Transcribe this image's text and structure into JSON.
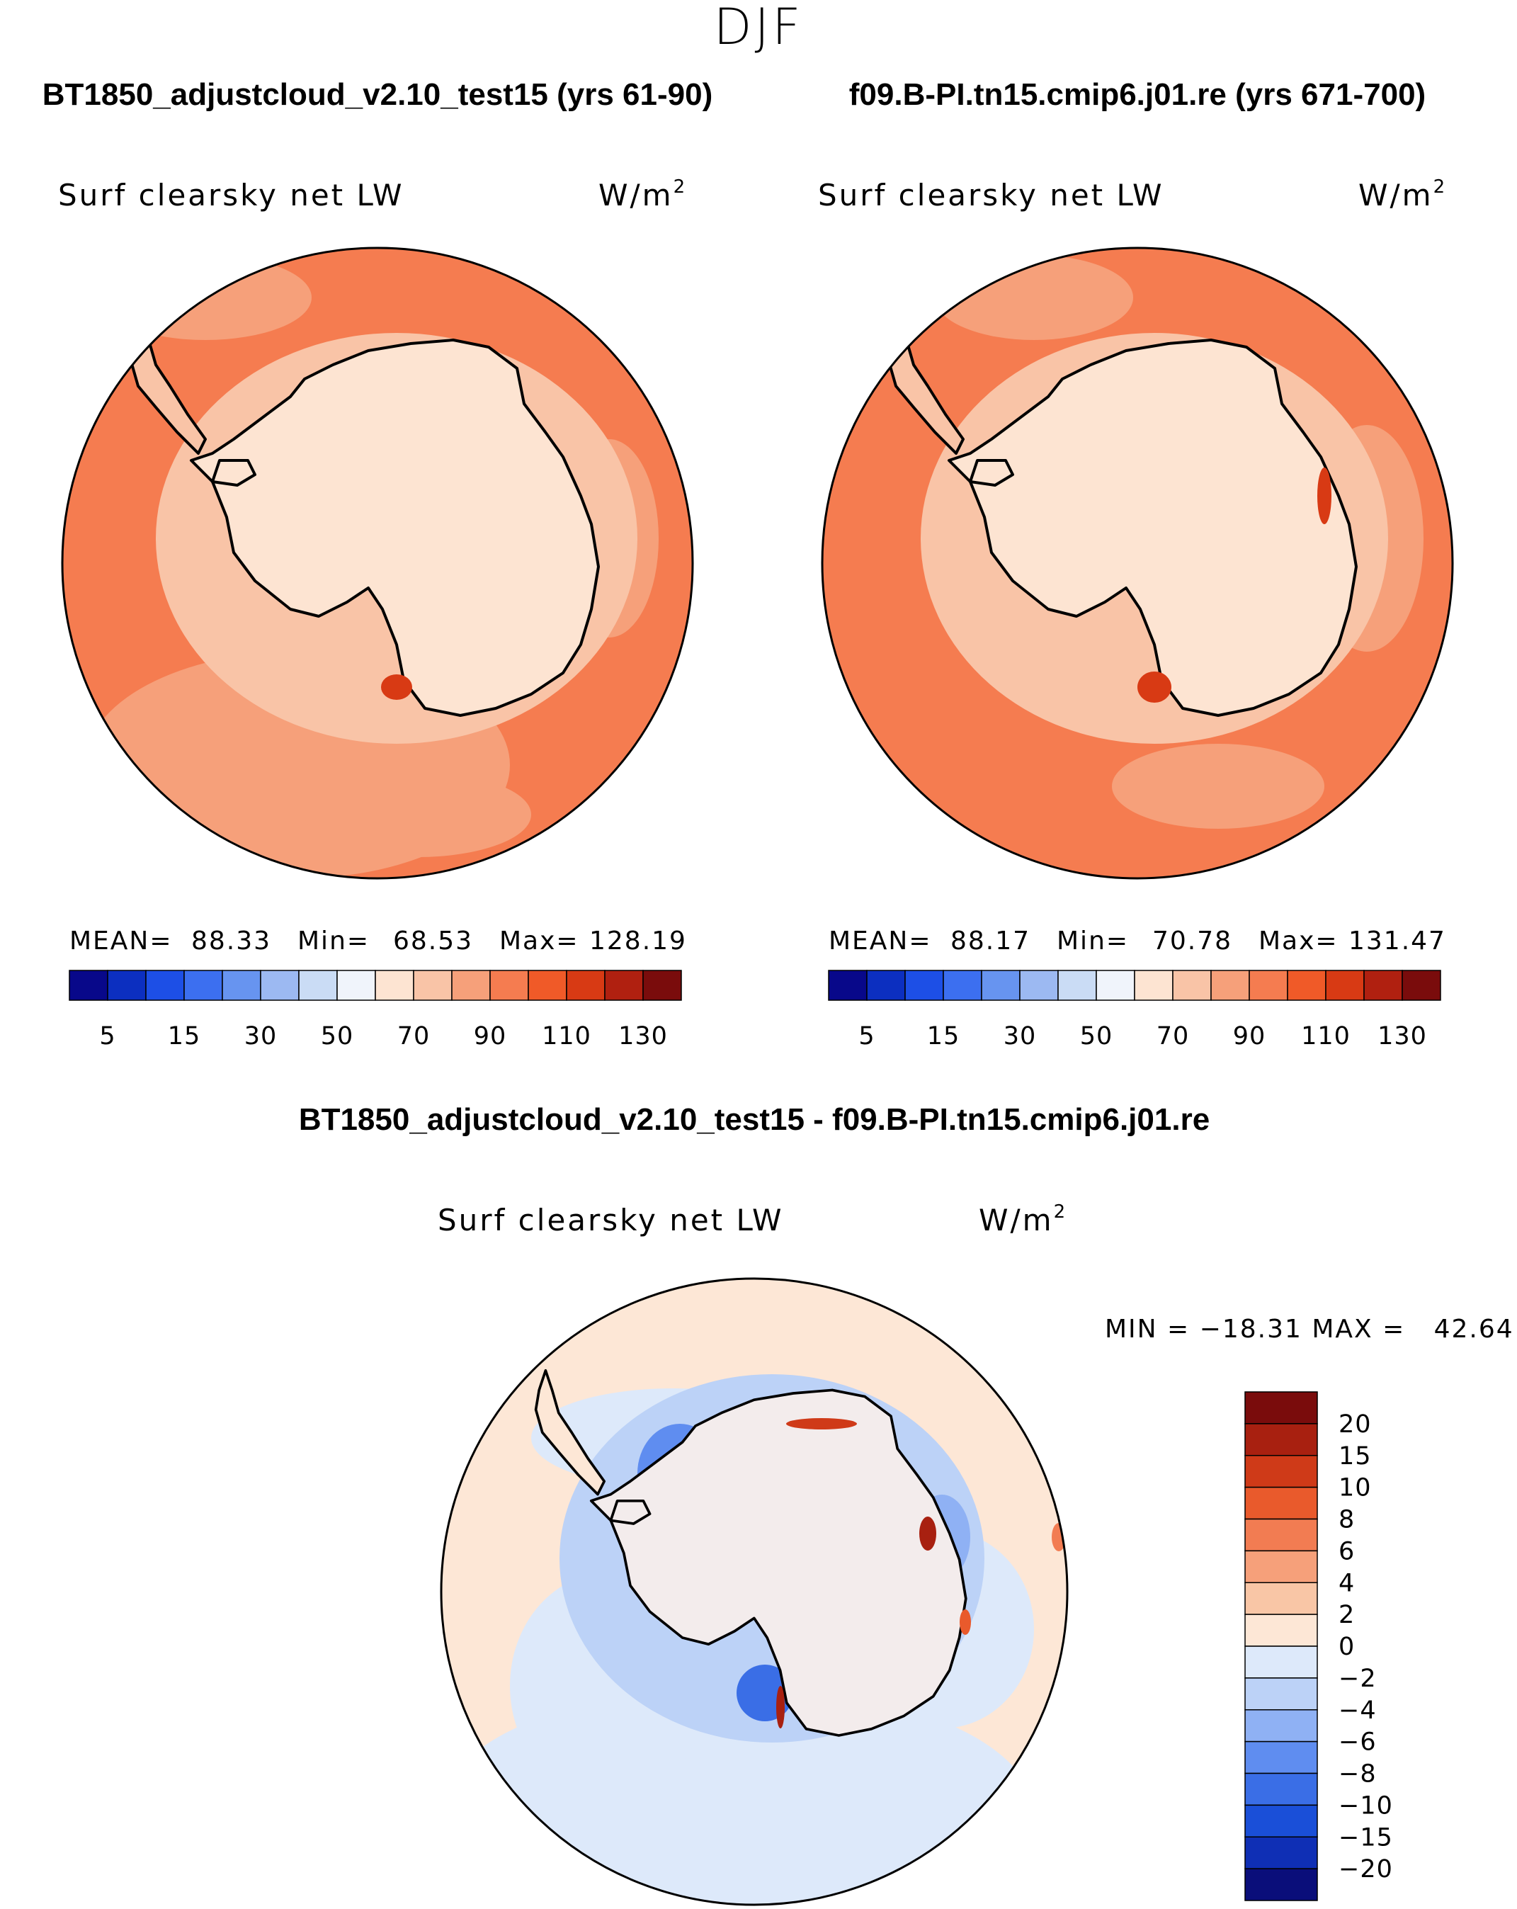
{
  "season": "DJF",
  "units_base": "W/m",
  "units_exp": "2",
  "variable": "Surf clearsky net LW",
  "colors": {
    "sequential": [
      "#08088a",
      "#0c2fc0",
      "#1d4fe6",
      "#3c6ff0",
      "#6794f0",
      "#9cb9f2",
      "#cadcf5",
      "#f0f4fb",
      "#fde4d2",
      "#f9c4a7",
      "#f6a07a",
      "#f57c50",
      "#f05a28",
      "#d83a14",
      "#b02010",
      "#7a0c0c"
    ],
    "diverging": [
      "#0a0e7a",
      "#0f2fb5",
      "#1a4fd8",
      "#3a6ee6",
      "#5f8df0",
      "#8fb1f4",
      "#bcd2f7",
      "#dde9fa",
      "#fde7d6",
      "#f9c6a6",
      "#f6a07a",
      "#f27c52",
      "#e95a2c",
      "#cf3a18",
      "#a82010",
      "#7a0c0c"
    ]
  },
  "panels": {
    "left": {
      "case": "BT1850_adjustcloud_v2.10_test15 (yrs 61-90)",
      "stats": {
        "mean_label": "MEAN=",
        "mean": "88.33",
        "min_label": "Min=",
        "min": "68.53",
        "max_label": "Max=",
        "max": "128.19"
      }
    },
    "right": {
      "case": "f09.B-PI.tn15.cmip6.j01.re (yrs 671-700)",
      "stats": {
        "mean_label": "MEAN=",
        "mean": "88.17",
        "min_label": "Min=",
        "min": "70.78",
        "max_label": "Max=",
        "max": "131.47"
      }
    },
    "diff": {
      "case": "BT1850_adjustcloud_v2.10_test15 - f09.B-PI.tn15.cmip6.j01.re",
      "range_text": "MIN = −18.31 MAX =   42.64"
    }
  },
  "chart_data": [
    {
      "type": "heatmap",
      "projection": "south-polar-stereographic",
      "title": "Surf clearsky net LW",
      "units": "W/m2",
      "case": "BT1850_adjustcloud_v2.10_test15 (yrs 61-90)",
      "mean": 88.33,
      "min": 68.53,
      "max": 128.19,
      "colorbar_levels": [
        5,
        10,
        15,
        20,
        30,
        40,
        50,
        60,
        70,
        80,
        90,
        100,
        110,
        120,
        130
      ],
      "colorbar_tick_labels": [
        "5",
        "15",
        "30",
        "50",
        "70",
        "90",
        "110",
        "130"
      ]
    },
    {
      "type": "heatmap",
      "projection": "south-polar-stereographic",
      "title": "Surf clearsky net LW",
      "units": "W/m2",
      "case": "f09.B-PI.tn15.cmip6.j01.re (yrs 671-700)",
      "mean": 88.17,
      "min": 70.78,
      "max": 131.47,
      "colorbar_levels": [
        5,
        10,
        15,
        20,
        30,
        40,
        50,
        60,
        70,
        80,
        90,
        100,
        110,
        120,
        130
      ],
      "colorbar_tick_labels": [
        "5",
        "15",
        "30",
        "50",
        "70",
        "90",
        "110",
        "130"
      ]
    },
    {
      "type": "heatmap",
      "projection": "south-polar-stereographic",
      "title": "Surf clearsky net LW",
      "units": "W/m2",
      "case": "BT1850_adjustcloud_v2.10_test15 - f09.B-PI.tn15.cmip6.j01.re",
      "min": -18.31,
      "max": 42.64,
      "colorbar_levels": [
        -20,
        -15,
        -10,
        -8,
        -6,
        -4,
        -2,
        0,
        2,
        4,
        6,
        8,
        10,
        15,
        20
      ],
      "colorbar_tick_labels": [
        "20",
        "15",
        "10",
        "8",
        "6",
        "4",
        "2",
        "0",
        "−2",
        "−4",
        "−6",
        "−8",
        "−10",
        "−15",
        "−20"
      ]
    }
  ]
}
